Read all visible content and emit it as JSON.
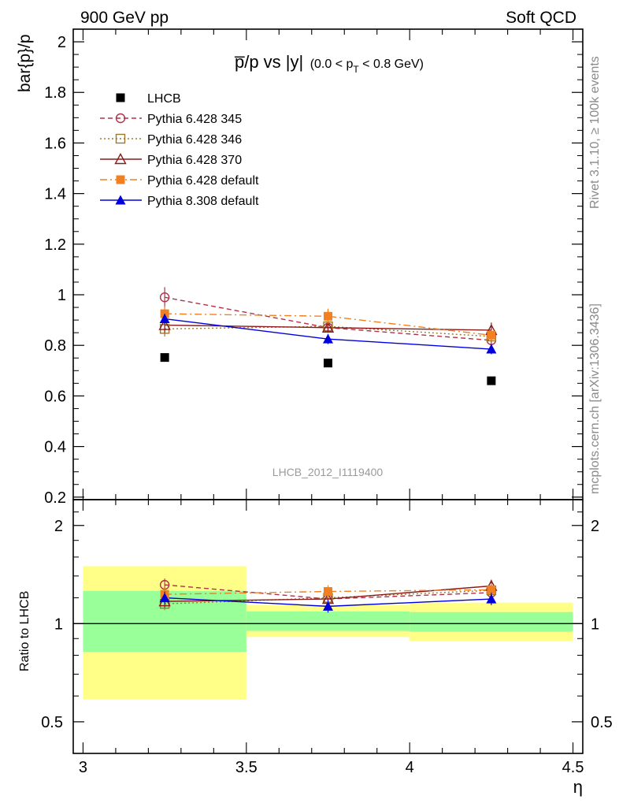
{
  "header": {
    "left": "900 GeV pp",
    "right": "Soft QCD"
  },
  "side_labels": {
    "rivet": "Rivet 3.1.10, ≥ 100k events",
    "mcplots": "mcplots.cern.ch [arXiv:1306.3436]"
  },
  "chart_data": [
    {
      "type": "scatter",
      "panel": "main",
      "title": "p̅/p vs |y|",
      "subtitle": "(0.0 < p_T < 0.8 GeV)",
      "ylabel": "bar{p}/p",
      "xlabel": "η",
      "analysis_id": "LHCB_2012_I1119400",
      "xlim": [
        2.97,
        4.53
      ],
      "ylim": [
        0.19,
        2.05
      ],
      "x_ticks": [
        "3",
        "3.5",
        "4",
        "4.5"
      ],
      "y_ticks": [
        "0.2",
        "0.4",
        "0.6",
        "0.8",
        "1",
        "1.2",
        "1.4",
        "1.6",
        "1.8",
        "2"
      ],
      "legend_position": "top-left",
      "x": [
        3.25,
        3.75,
        4.25
      ],
      "series": [
        {
          "name": "LHCB",
          "marker": "square-filled",
          "color": "#000000",
          "line": "none",
          "values": [
            0.752,
            0.73,
            0.66
          ]
        },
        {
          "name": "Pythia 6.428 345",
          "marker": "circle-open",
          "color": "#b0304a",
          "line": "dashed",
          "values": [
            0.99,
            0.87,
            0.82
          ],
          "errors": [
            0.04,
            0.02,
            0.02
          ]
        },
        {
          "name": "Pythia 6.428 346",
          "marker": "square-open",
          "color": "#9a7a2a",
          "line": "dotted",
          "values": [
            0.865,
            0.875,
            0.835
          ],
          "errors": [
            0.03,
            0.02,
            0.02
          ]
        },
        {
          "name": "Pythia 6.428 370",
          "marker": "triangle-open",
          "color": "#8b1a1a",
          "line": "solid",
          "values": [
            0.88,
            0.87,
            0.86
          ],
          "errors": [
            0.03,
            0.02,
            0.03
          ]
        },
        {
          "name": "Pythia 6.428 default",
          "marker": "square-filled",
          "color": "#f08020",
          "line": "dashdot",
          "values": [
            0.925,
            0.915,
            0.84
          ],
          "errors": [
            0.03,
            0.03,
            0.02
          ]
        },
        {
          "name": "Pythia 8.308 default",
          "marker": "triangle-filled",
          "color": "#0000dd",
          "line": "solid",
          "values": [
            0.905,
            0.825,
            0.785
          ],
          "errors": [
            0.02,
            0.02,
            0.02
          ]
        }
      ]
    },
    {
      "type": "scatter",
      "panel": "ratio",
      "ylabel": "Ratio to LHCB",
      "xlabel": "η",
      "log_y": true,
      "ylim": [
        0.4,
        2.4
      ],
      "y_ticks": [
        "0.5",
        "1",
        "2"
      ],
      "x_bins": [
        [
          3.0,
          3.5
        ],
        [
          3.5,
          4.0
        ],
        [
          4.0,
          4.5
        ]
      ],
      "band_stat": [
        [
          0.82,
          1.26
        ],
        [
          0.95,
          1.09
        ],
        [
          0.945,
          1.085
        ]
      ],
      "band_total": [
        [
          0.585,
          1.5
        ],
        [
          0.91,
          1.14
        ],
        [
          0.885,
          1.16
        ]
      ],
      "band_colors": {
        "stat": "#99ff99",
        "total": "#ffff88"
      },
      "reference_line": 1,
      "x": [
        3.25,
        3.75,
        4.25
      ],
      "series": [
        {
          "name": "Pythia 6.428 345",
          "values": [
            1.315,
            1.19,
            1.245
          ]
        },
        {
          "name": "Pythia 6.428 346",
          "values": [
            1.15,
            1.2,
            1.265
          ]
        },
        {
          "name": "Pythia 6.428 370",
          "values": [
            1.17,
            1.19,
            1.305
          ]
        },
        {
          "name": "Pythia 6.428 default",
          "values": [
            1.23,
            1.255,
            1.27
          ]
        },
        {
          "name": "Pythia 8.308 default",
          "values": [
            1.2,
            1.13,
            1.19
          ]
        }
      ]
    }
  ]
}
